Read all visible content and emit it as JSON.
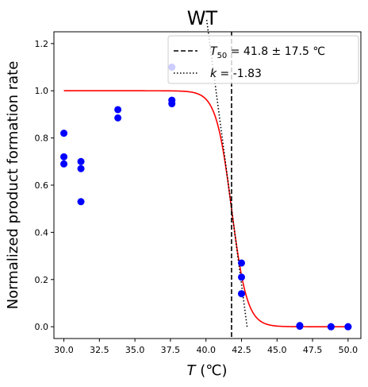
{
  "chart_data": {
    "type": "scatter",
    "title": "WT",
    "xlabel": {
      "symbol": "T",
      "unit": " (℃)"
    },
    "ylabel": "Normalized product formation rate",
    "xlim": [
      29.3,
      50.9
    ],
    "ylim": [
      -0.05,
      1.25
    ],
    "xticks": [
      30.0,
      32.5,
      35.0,
      37.5,
      40.0,
      42.5,
      45.0,
      47.5,
      50.0
    ],
    "xtick_labels": [
      "30.0",
      "32.5",
      "35.0",
      "37.5",
      "40.0",
      "42.5",
      "45.0",
      "47.5",
      "50.0"
    ],
    "yticks": [
      0.0,
      0.2,
      0.4,
      0.6,
      0.8,
      1.0,
      1.2
    ],
    "ytick_labels": [
      "0.0",
      "0.2",
      "0.4",
      "0.6",
      "0.8",
      "1.0",
      "1.2"
    ],
    "grid": false,
    "legend_position": "top-right",
    "points": {
      "color": "#0000ff",
      "x": [
        30.0,
        30.0,
        30.0,
        31.2,
        31.2,
        31.2,
        33.8,
        33.8,
        37.6,
        37.6,
        37.6,
        42.5,
        42.5,
        42.5,
        46.6,
        46.6,
        48.8,
        48.8,
        50.0,
        50.0
      ],
      "y": [
        0.82,
        0.72,
        0.69,
        0.7,
        0.67,
        0.53,
        0.92,
        0.885,
        0.96,
        0.945,
        1.1,
        0.27,
        0.21,
        0.14,
        0.005,
        0.002,
        0.0,
        0.0,
        0.0,
        0.0
      ]
    },
    "fit_curve": {
      "color": "#ff0000",
      "T50": 41.8,
      "k": -1.83,
      "x_range": [
        30.0,
        50.0
      ]
    },
    "t50_line": {
      "x": 41.8,
      "legend": {
        "symbol": "T",
        "sub": "50",
        "text": " = 41.8 ± 17.5 ℃"
      }
    },
    "slope_line": {
      "k": -1.83,
      "x_range": [
        40.05,
        42.9
      ],
      "legend": {
        "symbol": "k",
        "text": " = -1.83"
      }
    }
  }
}
